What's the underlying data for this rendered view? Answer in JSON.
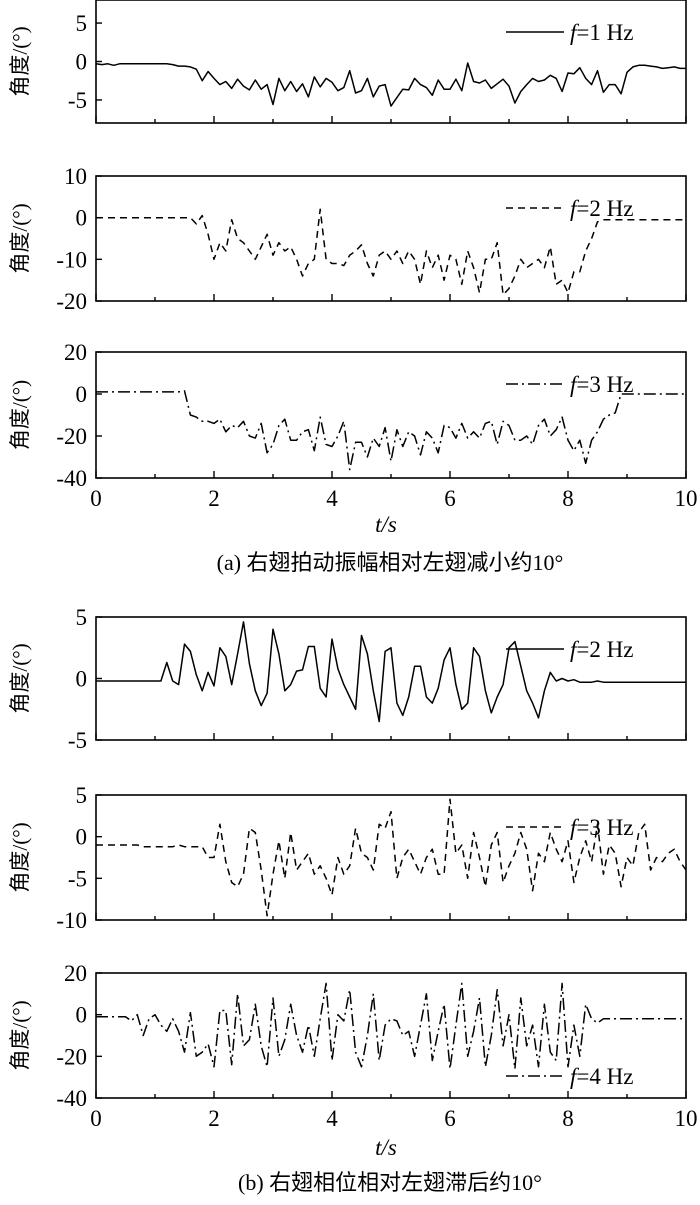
{
  "figure": {
    "caption_a": "(a) 右翅拍动振幅相对左翅减小约10°",
    "caption_b": "(b) 右翅相位相对左翅滞后约10°",
    "xlabel_a": "t/s",
    "xlabel_b": "t/s"
  },
  "chart_data": [
    {
      "type": "line",
      "group": "a",
      "ylabel": "角度/(°)",
      "legend": "f=1 Hz",
      "legend_pos": "top-right",
      "line_style": "solid",
      "xlim": [
        0,
        10
      ],
      "ylim": [
        -8,
        8
      ],
      "yticks": [
        -5,
        0,
        5
      ],
      "x": [
        0,
        0.1,
        0.2,
        0.3,
        0.4,
        0.5,
        0.6,
        0.7,
        0.8,
        0.9,
        1.0,
        1.1,
        1.2,
        1.3,
        1.4,
        1.5,
        1.6,
        1.7,
        1.8,
        1.9,
        2.0,
        2.1,
        2.2,
        2.3,
        2.4,
        2.5,
        2.6,
        2.7,
        2.8,
        2.9,
        3.0,
        3.1,
        3.2,
        3.3,
        3.4,
        3.5,
        3.6,
        3.7,
        3.8,
        3.9,
        4.0,
        4.1,
        4.2,
        4.3,
        4.4,
        4.5,
        4.6,
        4.7,
        4.8,
        4.9,
        5.0,
        5.1,
        5.2,
        5.3,
        5.4,
        5.5,
        5.6,
        5.7,
        5.8,
        5.9,
        6.0,
        6.1,
        6.2,
        6.3,
        6.4,
        6.5,
        6.6,
        6.7,
        6.8,
        6.9,
        7.0,
        7.1,
        7.2,
        7.3,
        7.4,
        7.5,
        7.6,
        7.7,
        7.8,
        7.9,
        8.0,
        8.1,
        8.2,
        8.3,
        8.4,
        8.5,
        8.6,
        8.7,
        8.8,
        8.9,
        9.0,
        9.1,
        9.2,
        9.3,
        9.4,
        9.5,
        9.6,
        9.7,
        9.8,
        9.9,
        10.0
      ],
      "y": [
        -0.3,
        -0.4,
        -0.3,
        -0.5,
        -0.3,
        -0.3,
        -0.3,
        -0.3,
        -0.3,
        -0.3,
        -0.3,
        -0.3,
        -0.3,
        -0.4,
        -0.6,
        -0.6,
        -0.7,
        -1.0,
        -2.5,
        -1.3,
        -2.2,
        -3.0,
        -2.6,
        -3.5,
        -2.3,
        -3.2,
        -3.7,
        -2.4,
        -3.6,
        -3.0,
        -5.6,
        -2.2,
        -3.8,
        -2.6,
        -3.9,
        -2.9,
        -4.6,
        -2.0,
        -3.3,
        -2.2,
        -2.7,
        -3.8,
        -3.4,
        -1.2,
        -4.1,
        -3.8,
        -2.2,
        -4.6,
        -3.2,
        -3.0,
        -5.8,
        -4.7,
        -3.6,
        -3.7,
        -2.2,
        -3.0,
        -3.4,
        -4.4,
        -2.4,
        -3.6,
        -3.6,
        -2.3,
        -3.8,
        -0.2,
        -2.6,
        -2.8,
        -2.4,
        -3.5,
        -2.9,
        -2.3,
        -3.2,
        -5.4,
        -3.9,
        -3.0,
        -2.2,
        -2.6,
        -2.4,
        -1.8,
        -2.2,
        -3.9,
        -1.5,
        -1.6,
        -0.8,
        -2.2,
        -3.0,
        -1.2,
        -4.0,
        -3.0,
        -3.0,
        -4.2,
        -1.4,
        -0.7,
        -0.5,
        -0.5,
        -0.6,
        -0.7,
        -0.9,
        -0.8,
        -0.7,
        -0.9,
        -0.9
      ]
    },
    {
      "type": "line",
      "group": "a",
      "ylabel": "角度/(°)",
      "legend": "f=2 Hz",
      "legend_pos": "top-right",
      "line_style": "dashed",
      "xlim": [
        0,
        10
      ],
      "ylim": [
        -20,
        10
      ],
      "yticks": [
        -20,
        -10,
        0,
        10
      ],
      "x": [
        0,
        0.1,
        0.2,
        0.3,
        0.4,
        0.5,
        0.6,
        0.7,
        0.8,
        0.9,
        1.0,
        1.1,
        1.2,
        1.3,
        1.4,
        1.5,
        1.6,
        1.7,
        1.8,
        1.9,
        2.0,
        2.1,
        2.2,
        2.3,
        2.4,
        2.5,
        2.6,
        2.7,
        2.8,
        2.9,
        3.0,
        3.1,
        3.2,
        3.3,
        3.4,
        3.5,
        3.6,
        3.7,
        3.8,
        3.9,
        4.0,
        4.1,
        4.2,
        4.3,
        4.4,
        4.5,
        4.6,
        4.7,
        4.8,
        4.9,
        5.0,
        5.1,
        5.2,
        5.3,
        5.4,
        5.5,
        5.6,
        5.7,
        5.8,
        5.9,
        6.0,
        6.1,
        6.2,
        6.3,
        6.4,
        6.5,
        6.6,
        6.7,
        6.8,
        6.9,
        7.0,
        7.1,
        7.2,
        7.3,
        7.4,
        7.5,
        7.6,
        7.7,
        7.8,
        7.9,
        8.0,
        8.1,
        8.2,
        8.3,
        8.4,
        8.5,
        8.6,
        8.7,
        8.8,
        8.9,
        9.0,
        9.1,
        9.2,
        9.3,
        9.4,
        9.5,
        9.6,
        9.7,
        9.8,
        9.9,
        10.0
      ],
      "y": [
        0,
        0,
        0,
        0,
        0,
        0,
        0,
        0,
        0,
        0,
        0,
        0,
        0,
        0,
        0,
        0,
        0,
        -1.5,
        0.5,
        -4,
        -10,
        -6,
        -8,
        -0.5,
        -5,
        -6,
        -8,
        -10,
        -7,
        -4,
        -9,
        -6,
        -8,
        -7,
        -10,
        -14,
        -11,
        -10,
        2,
        -10,
        -11,
        -11,
        -11.5,
        -9,
        -8,
        -6.5,
        -11,
        -14,
        -9,
        -8,
        -10,
        -8,
        -11,
        -8,
        -10,
        -16,
        -8,
        -12,
        -9,
        -15,
        -9,
        -10,
        -16,
        -8,
        -12,
        -18,
        -10,
        -10,
        -6,
        -18.5,
        -17,
        -14,
        -10,
        -12,
        -11,
        -10,
        -12,
        -7,
        -16,
        -15,
        -18,
        -13,
        -13,
        -8,
        -5,
        -1,
        -0.5,
        -0.5,
        -0.5,
        -0.5,
        -0.5,
        -0.5,
        -0.5,
        -0.5,
        -0.5,
        -0.5,
        -0.5,
        -0.5,
        -0.5,
        -0.5,
        -0.5
      ]
    },
    {
      "type": "line",
      "group": "a",
      "ylabel": "角度/(°)",
      "legend": "f=3 Hz",
      "legend_pos": "top-right",
      "line_style": "dashdot",
      "xlim": [
        0,
        10
      ],
      "ylim": [
        -40,
        20
      ],
      "yticks": [
        -40,
        -20,
        0,
        20
      ],
      "x": [
        0,
        0.1,
        0.2,
        0.3,
        0.4,
        0.5,
        0.6,
        0.7,
        0.8,
        0.9,
        1.0,
        1.1,
        1.2,
        1.3,
        1.4,
        1.5,
        1.6,
        1.7,
        1.8,
        1.9,
        2.0,
        2.1,
        2.2,
        2.3,
        2.4,
        2.5,
        2.6,
        2.7,
        2.8,
        2.9,
        3.0,
        3.1,
        3.2,
        3.3,
        3.4,
        3.5,
        3.6,
        3.7,
        3.8,
        3.9,
        4.0,
        4.1,
        4.2,
        4.3,
        4.4,
        4.5,
        4.6,
        4.7,
        4.8,
        4.9,
        5.0,
        5.1,
        5.2,
        5.3,
        5.4,
        5.5,
        5.6,
        5.7,
        5.8,
        5.9,
        6.0,
        6.1,
        6.2,
        6.3,
        6.4,
        6.5,
        6.6,
        6.7,
        6.8,
        6.9,
        7.0,
        7.1,
        7.2,
        7.3,
        7.4,
        7.5,
        7.6,
        7.7,
        7.8,
        7.9,
        8.0,
        8.1,
        8.2,
        8.3,
        8.4,
        8.5,
        8.6,
        8.7,
        8.8,
        8.9,
        9.0,
        9.1,
        9.2,
        9.3,
        9.4,
        9.5,
        9.6,
        9.7,
        9.8,
        9.9,
        10.0
      ],
      "y": [
        1,
        1,
        1,
        1,
        1,
        1,
        1,
        1,
        1,
        1,
        1,
        1,
        1,
        1,
        1,
        1.5,
        -10,
        -11,
        -13,
        -13,
        -14,
        -12,
        -18,
        -15,
        -16,
        -13,
        -20,
        -21,
        -14,
        -28,
        -24,
        -15,
        -12,
        -22,
        -22,
        -18,
        -17,
        -27,
        -11,
        -24,
        -25,
        -20,
        -13,
        -36,
        -23,
        -23,
        -30,
        -21,
        -25,
        -16,
        -32,
        -17,
        -25,
        -18,
        -20,
        -29,
        -18,
        -21,
        -28,
        -15,
        -16,
        -21,
        -14,
        -21,
        -18,
        -21,
        -14,
        -13,
        -24,
        -13,
        -15,
        -22,
        -22,
        -20,
        -24,
        -15,
        -12,
        -20,
        -17,
        -11,
        -22,
        -27,
        -22,
        -33,
        -22,
        -18,
        -12,
        -10,
        -9,
        0,
        0,
        0,
        0,
        0,
        0,
        0,
        0,
        0,
        0,
        0,
        0
      ],
      "xticks": [
        0,
        2,
        4,
        6,
        8,
        10
      ]
    },
    {
      "type": "line",
      "group": "b",
      "ylabel": "角度/(°)",
      "legend": "f=2 Hz",
      "legend_pos": "top-right",
      "line_style": "solid",
      "xlim": [
        0,
        10
      ],
      "ylim": [
        -5,
        5
      ],
      "yticks": [
        -5,
        0,
        5
      ],
      "x": [
        0,
        0.1,
        0.2,
        0.3,
        0.4,
        0.5,
        0.6,
        0.7,
        0.8,
        0.9,
        1.0,
        1.1,
        1.2,
        1.3,
        1.4,
        1.5,
        1.6,
        1.7,
        1.8,
        1.9,
        2.0,
        2.1,
        2.2,
        2.3,
        2.4,
        2.5,
        2.6,
        2.7,
        2.8,
        2.9,
        3.0,
        3.1,
        3.2,
        3.3,
        3.4,
        3.5,
        3.6,
        3.7,
        3.8,
        3.9,
        4.0,
        4.1,
        4.2,
        4.3,
        4.4,
        4.5,
        4.6,
        4.7,
        4.8,
        4.9,
        5.0,
        5.1,
        5.2,
        5.3,
        5.4,
        5.5,
        5.6,
        5.7,
        5.8,
        5.9,
        6.0,
        6.1,
        6.2,
        6.3,
        6.4,
        6.5,
        6.6,
        6.7,
        6.8,
        6.9,
        7.0,
        7.1,
        7.2,
        7.3,
        7.4,
        7.5,
        7.6,
        7.7,
        7.8,
        7.9,
        8.0,
        8.1,
        8.2,
        8.3,
        8.4,
        8.5,
        8.6,
        8.7,
        8.8,
        8.9,
        9.0,
        9.1,
        9.2,
        9.3,
        9.4,
        9.5,
        9.6,
        9.7,
        9.8,
        9.9,
        10.0
      ],
      "y": [
        -0.2,
        -0.2,
        -0.2,
        -0.2,
        -0.2,
        -0.2,
        -0.2,
        -0.2,
        -0.2,
        -0.2,
        -0.2,
        -0.2,
        1.3,
        -0.2,
        -0.5,
        2.8,
        2.2,
        0.3,
        -1.0,
        0.5,
        -0.6,
        2.5,
        1.8,
        -0.5,
        2.0,
        4.6,
        1.2,
        -1.0,
        -2.2,
        -1.2,
        4.0,
        2.0,
        -1.0,
        -0.5,
        0.6,
        0.7,
        2.6,
        2.6,
        -0.8,
        -1.5,
        3.2,
        0.8,
        -0.5,
        -1.5,
        -2.5,
        3.5,
        2.0,
        -1.0,
        -3.5,
        2.2,
        2.5,
        -2.0,
        -3.0,
        -1.5,
        1.0,
        1.0,
        -1.5,
        -2.0,
        -0.8,
        1.5,
        2.5,
        -0.5,
        -2.5,
        -2.0,
        2.5,
        1.8,
        -1.0,
        -2.8,
        -1.5,
        -0.5,
        2.5,
        3.0,
        1.0,
        -1.0,
        -2.0,
        -3.2,
        -1.0,
        0.5,
        -0.2,
        0,
        -0.2,
        -0.1,
        -0.3,
        -0.3,
        -0.3,
        -0.2,
        -0.3,
        -0.3,
        -0.3,
        -0.3,
        -0.3,
        -0.3,
        -0.3,
        -0.3,
        -0.3,
        -0.3,
        -0.3,
        -0.3,
        -0.3,
        -0.3,
        -0.3
      ]
    },
    {
      "type": "line",
      "group": "b",
      "ylabel": "角度/(°)",
      "legend": "f=3 Hz",
      "legend_pos": "top-right",
      "line_style": "dashed",
      "xlim": [
        0,
        10
      ],
      "ylim": [
        -10,
        5
      ],
      "yticks": [
        -10,
        -5,
        0,
        5
      ],
      "x": [
        0,
        0.1,
        0.2,
        0.3,
        0.4,
        0.5,
        0.6,
        0.7,
        0.8,
        0.9,
        1.0,
        1.1,
        1.2,
        1.3,
        1.4,
        1.5,
        1.6,
        1.7,
        1.8,
        1.9,
        2.0,
        2.1,
        2.2,
        2.3,
        2.4,
        2.5,
        2.6,
        2.7,
        2.8,
        2.9,
        3.0,
        3.1,
        3.2,
        3.3,
        3.4,
        3.5,
        3.6,
        3.7,
        3.8,
        3.9,
        4.0,
        4.1,
        4.2,
        4.3,
        4.4,
        4.5,
        4.6,
        4.7,
        4.8,
        4.9,
        5.0,
        5.1,
        5.2,
        5.3,
        5.4,
        5.5,
        5.6,
        5.7,
        5.8,
        5.9,
        6.0,
        6.1,
        6.2,
        6.3,
        6.4,
        6.5,
        6.6,
        6.7,
        6.8,
        6.9,
        7.0,
        7.1,
        7.2,
        7.3,
        7.4,
        7.5,
        7.6,
        7.7,
        7.8,
        7.9,
        8.0,
        8.1,
        8.2,
        8.3,
        8.4,
        8.5,
        8.6,
        8.7,
        8.8,
        8.9,
        9.0,
        9.1,
        9.2,
        9.3,
        9.4,
        9.5,
        9.6,
        9.7,
        9.8,
        9.9,
        10.0
      ],
      "y": [
        -1,
        -1,
        -1,
        -1,
        -1,
        -1,
        -1,
        -1,
        -1.2,
        -1.2,
        -1.2,
        -1.2,
        -1.2,
        -1.2,
        -1.0,
        -1.2,
        -1.2,
        -1.2,
        -1.2,
        -2.5,
        -2.5,
        1.5,
        -3.0,
        -5.5,
        -6.0,
        -4.5,
        1.0,
        0.5,
        -4.0,
        -9.5,
        -4.5,
        -0.5,
        -5.0,
        0.5,
        -4.0,
        -3.0,
        -2.0,
        -4.5,
        -3.5,
        -5.0,
        -7.0,
        -2.5,
        -4.5,
        -3.5,
        1.0,
        -2.0,
        -2.5,
        -4.0,
        1.5,
        1.0,
        3.0,
        -5.0,
        -2.5,
        -1.5,
        -3.0,
        -4.5,
        -2.5,
        -1.5,
        -4.5,
        -4.5,
        4.5,
        -2.0,
        -1.0,
        -5.0,
        0.5,
        -2.5,
        -6.0,
        -1.0,
        0.5,
        -5.5,
        -3.5,
        -2.0,
        0.5,
        -1.5,
        -6.5,
        -2.0,
        -3.0,
        0.5,
        -1.5,
        -3.0,
        -0.5,
        -5.5,
        -2.5,
        -0.5,
        -3.0,
        1.5,
        -4.5,
        -1.0,
        -2.0,
        -6.0,
        -2.5,
        -3.5,
        0.5,
        1.5,
        -4.0,
        -2.5,
        -3.0,
        -2.0,
        -1.5,
        -3.0,
        -4.0
      ],
      "note_y": "-"
    },
    {
      "type": "line",
      "group": "b",
      "ylabel": "角度/(°)",
      "legend": "f=4 Hz",
      "legend_pos": "bottom-right",
      "line_style": "dashdot",
      "xlim": [
        0,
        10
      ],
      "ylim": [
        -40,
        20
      ],
      "yticks": [
        -40,
        -20,
        0,
        20
      ],
      "x": [
        0,
        0.1,
        0.2,
        0.3,
        0.4,
        0.5,
        0.6,
        0.7,
        0.8,
        0.9,
        1.0,
        1.1,
        1.2,
        1.3,
        1.4,
        1.5,
        1.6,
        1.7,
        1.8,
        1.9,
        2.0,
        2.1,
        2.2,
        2.3,
        2.4,
        2.5,
        2.6,
        2.7,
        2.8,
        2.9,
        3.0,
        3.1,
        3.2,
        3.3,
        3.4,
        3.5,
        3.6,
        3.7,
        3.8,
        3.9,
        4.0,
        4.1,
        4.2,
        4.3,
        4.4,
        4.5,
        4.6,
        4.7,
        4.8,
        4.9,
        5.0,
        5.1,
        5.2,
        5.3,
        5.4,
        5.5,
        5.6,
        5.7,
        5.8,
        5.9,
        6.0,
        6.1,
        6.2,
        6.3,
        6.4,
        6.5,
        6.6,
        6.7,
        6.8,
        6.9,
        7.0,
        7.1,
        7.2,
        7.3,
        7.4,
        7.5,
        7.6,
        7.7,
        7.8,
        7.9,
        8.0,
        8.1,
        8.2,
        8.3,
        8.4,
        8.5,
        8.6,
        8.7,
        8.8,
        8.9,
        9.0,
        9.1,
        9.2,
        9.3,
        9.4,
        9.5,
        9.6,
        9.7,
        9.8,
        9.9,
        10.0
      ],
      "y": [
        -1,
        -1,
        -1,
        -1,
        -1,
        -1,
        -3,
        0,
        -10,
        -2,
        0,
        -5,
        -8,
        -2,
        -8,
        -18,
        1,
        -20,
        -18,
        -14,
        -25,
        2,
        2,
        -24,
        10,
        -15,
        -12,
        5,
        -15,
        -25,
        8,
        -20,
        -12,
        5,
        -10,
        -18,
        -5,
        -20,
        -2,
        15,
        -22,
        0,
        -3,
        12,
        -18,
        -25,
        -10,
        10,
        -22,
        -5,
        -2,
        -3,
        -10,
        -8,
        -20,
        -5,
        10,
        -22,
        -8,
        5,
        -26,
        -5,
        15,
        -20,
        -8,
        8,
        -25,
        -10,
        12,
        -15,
        0,
        -26,
        8,
        -15,
        -5,
        -25,
        5,
        -18,
        -22,
        15,
        -25,
        -5,
        -20,
        5,
        -2,
        -4,
        -2,
        -2,
        -2,
        -2,
        -2,
        -2,
        -2,
        -2,
        -2,
        -2,
        -2,
        -2,
        -2,
        -2,
        -2
      ],
      "xticks": [
        0,
        2,
        4,
        6,
        8,
        10
      ]
    }
  ]
}
